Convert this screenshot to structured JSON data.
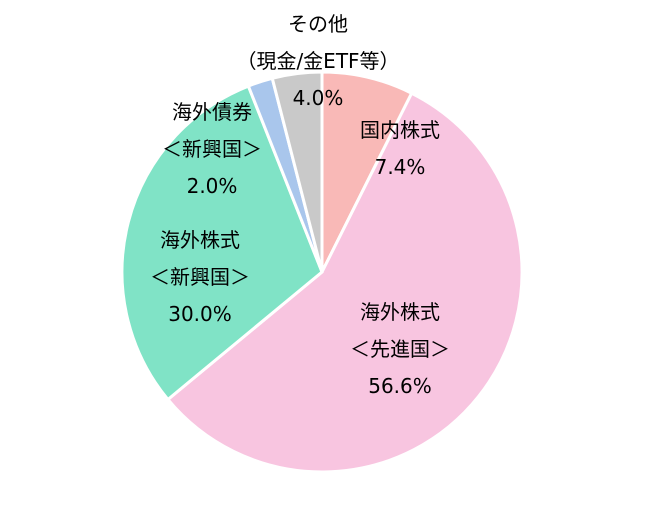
{
  "chart_data": {
    "type": "pie",
    "categories": [
      "国内株式",
      "海外株式\n＜先進国＞",
      "海外株式\n＜新興国＞",
      "海外債券\n＜新興国＞",
      "その他\n（現金/金ETF等）"
    ],
    "values": [
      7.4,
      56.6,
      30.0,
      2.0,
      4.0
    ],
    "value_labels": [
      "7.4%",
      "56.6%",
      "30.0%",
      "2.0%",
      "4.0%"
    ],
    "colors": [
      "#f9b9b7",
      "#f8c5e0",
      "#80e3c6",
      "#a9c6ec",
      "#c9c9c9"
    ]
  }
}
